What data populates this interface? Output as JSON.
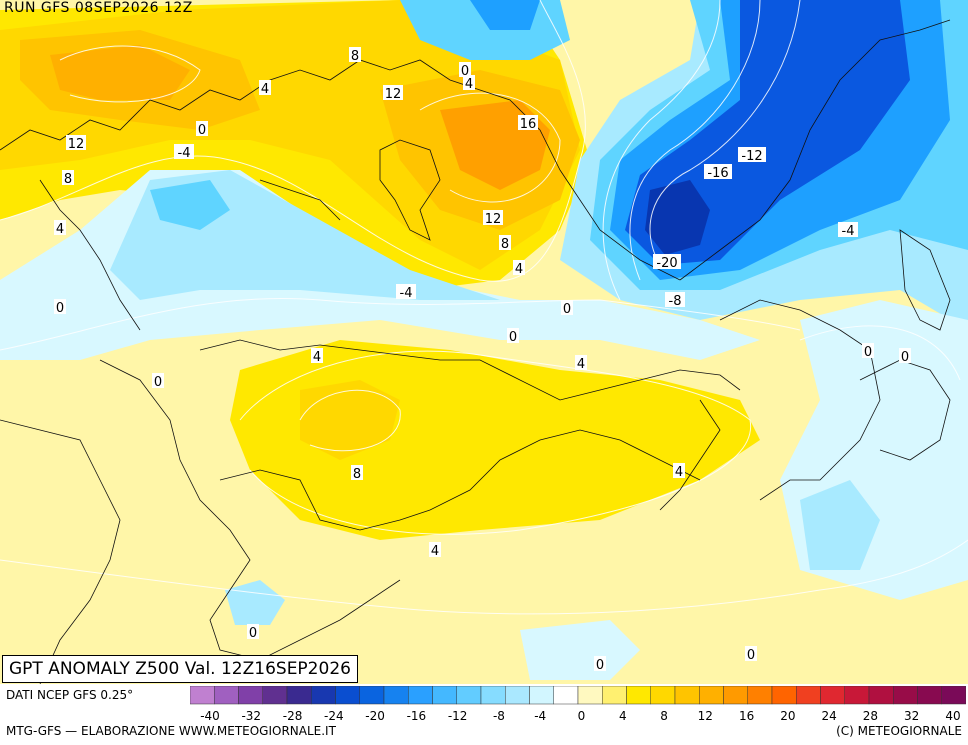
{
  "header": {
    "run_label": "RUN GFS 08SEP2026 12Z"
  },
  "title": {
    "text": "GPT ANOMALY Z500 Val. 12Z16SEP2026"
  },
  "footer": {
    "data_source": "DATI NCEP GFS 0.25°",
    "credit_left": "MTG-GFS — ELABORAZIONE WWW.METEOGIORNALE.IT",
    "credit_right": "(C) METEOGIORNALE"
  },
  "colors": {
    "strong_positive": "#f5a623",
    "positive_orange": "#ffc400",
    "positive_yellow": "#ffe800",
    "light_yellow": "#fff6a8",
    "pale_yellow": "#fffbd2",
    "neutral": "#ffffff",
    "pale_cyan": "#d8f8ff",
    "light_cyan": "#a8eaff",
    "cyan": "#5fd4ff",
    "blue": "#1ea0ff",
    "deep_blue": "#0a58e0",
    "darkest_blue": "#0836b0"
  },
  "scale": {
    "labels": [
      "-40",
      "-32",
      "-28",
      "-24",
      "-20",
      "-16",
      "-12",
      "-8",
      "-4",
      "0",
      "4",
      "8",
      "12",
      "16",
      "20",
      "24",
      "28",
      "32",
      "40"
    ],
    "colors": [
      "#c080d0",
      "#a060c0",
      "#8040a8",
      "#603090",
      "#3a2a90",
      "#1838b0",
      "#0a4ed0",
      "#0a64e0",
      "#1682f0",
      "#2aa0ff",
      "#44b8ff",
      "#62ccff",
      "#86dcff",
      "#aae8ff",
      "#d2f6ff",
      "#ffffff",
      "#fff9c0",
      "#fff070",
      "#ffe800",
      "#ffd800",
      "#ffc400",
      "#ffb000",
      "#ff9a00",
      "#ff8000",
      "#ff6400",
      "#f04020",
      "#e02830",
      "#c81838",
      "#b01040",
      "#980c48",
      "#880a50",
      "#7a0a58"
    ]
  },
  "contour_labels": [
    {
      "text": "8"
    },
    {
      "text": "4"
    },
    {
      "text": "12"
    },
    {
      "text": "0"
    },
    {
      "text": "-4"
    },
    {
      "text": "12"
    },
    {
      "text": "8"
    },
    {
      "text": "4"
    },
    {
      "text": "0"
    },
    {
      "text": "4"
    },
    {
      "text": "12"
    },
    {
      "text": "16"
    },
    {
      "text": "12"
    },
    {
      "text": "8"
    },
    {
      "text": "4"
    },
    {
      "text": "-4"
    },
    {
      "text": "0"
    },
    {
      "text": "0"
    },
    {
      "text": "-12"
    },
    {
      "text": "-16"
    },
    {
      "text": "-20"
    },
    {
      "text": "-8"
    },
    {
      "text": "-4"
    },
    {
      "text": "0"
    },
    {
      "text": "0"
    },
    {
      "text": "0"
    },
    {
      "text": "4"
    },
    {
      "text": "0"
    },
    {
      "text": "4"
    },
    {
      "text": "8"
    },
    {
      "text": "4"
    },
    {
      "text": "4"
    },
    {
      "text": "0"
    },
    {
      "text": "0"
    },
    {
      "text": "0"
    }
  ]
}
